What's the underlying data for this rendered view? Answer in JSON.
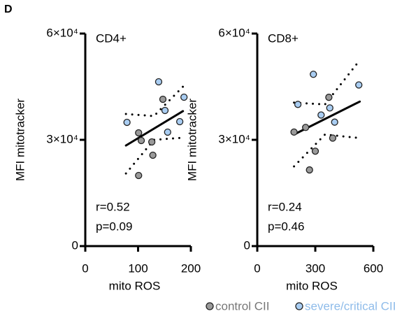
{
  "panel_label": "D",
  "chart_data": [
    {
      "type": "scatter",
      "title": "CD4+",
      "xlabel": "mito ROS",
      "ylabel": "MFI mitotracker",
      "xlim": [
        0,
        200
      ],
      "xticks": [
        0,
        100,
        200
      ],
      "ylim": [
        0,
        60000
      ],
      "yticks": [
        0,
        {
          "value": 30000,
          "label": "3×10⁴"
        },
        {
          "value": 60000,
          "label": "6×10⁴"
        }
      ],
      "annotations": [
        "r=0.52",
        "p=0.09"
      ],
      "series": [
        {
          "name": "control CII",
          "color": "#9a9a9a",
          "x": [
            101,
            106,
            101,
            126,
            128,
            147
          ],
          "values": [
            31974,
            29800,
            19934,
            29408,
            25658,
            41447
          ]
        },
        {
          "name": "severe/critical CII",
          "color": "#a9cdf2",
          "x": [
            79,
            139,
            151,
            156,
            179,
            187
          ],
          "values": [
            34934,
            46382,
            38289,
            32171,
            35132,
            42039
          ]
        }
      ],
      "fit": {
        "x": [
          77,
          185
        ],
        "y": [
          28400,
          38100
        ]
      },
      "ci_upper": {
        "x": [
          77,
          130,
          185
        ],
        "y": [
          37300,
          36700,
          45000
        ]
      },
      "ci_lower": {
        "x": [
          77,
          130,
          185
        ],
        "y": [
          20500,
          30000,
          30600
        ]
      }
    },
    {
      "type": "scatter",
      "title": "CD8+",
      "xlabel": "mito ROS",
      "ylabel": "MFI mitotracker",
      "xlim": [
        0,
        600
      ],
      "xticks": [
        0,
        300,
        600
      ],
      "ylim": [
        0,
        60000
      ],
      "yticks": [
        0,
        {
          "value": 30000,
          "label": "3×10⁴"
        },
        {
          "value": 60000,
          "label": "6×10⁴"
        }
      ],
      "annotations": [
        "r=0.24",
        "p=0.46"
      ],
      "series": [
        {
          "color": "#9a9a9a",
          "x": [
            190,
            250,
            270,
            300,
            370,
            390
          ],
          "values": [
            32200,
            33500,
            21500,
            26800,
            42000,
            30500
          ]
        },
        {
          "color": "#a9cdf2",
          "x": [
            210,
            290,
            330,
            375,
            400,
            525
          ],
          "values": [
            40000,
            48500,
            37000,
            39000,
            35000,
            45500
          ]
        }
      ],
      "fit": {
        "x": [
          190,
          530
        ],
        "y": [
          31500,
          40800
        ]
      },
      "ci_upper": {
        "x": [
          190,
          350,
          530
        ],
        "y": [
          40500,
          40000,
          52500
        ]
      },
      "ci_lower": {
        "x": [
          190,
          350,
          530
        ],
        "y": [
          22500,
          31500,
          30500
        ]
      }
    }
  ]
}
